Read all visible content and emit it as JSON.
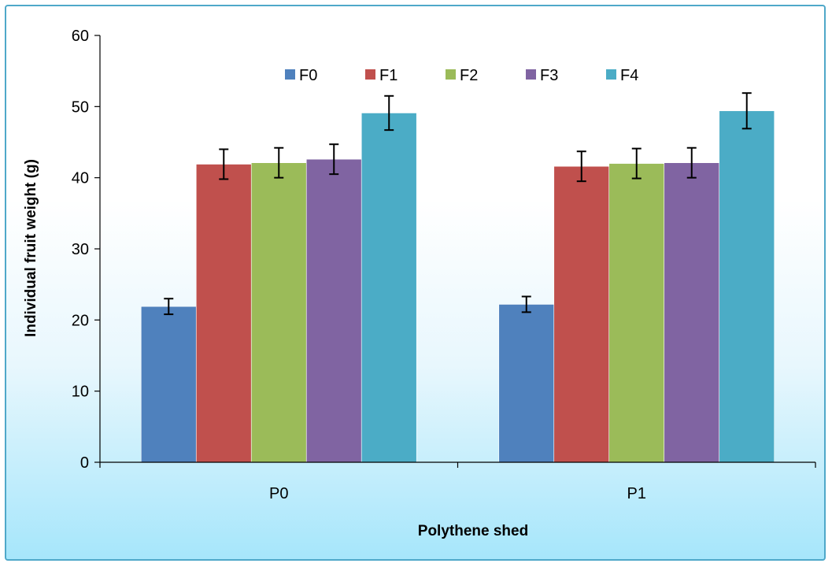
{
  "chart_data": {
    "type": "bar",
    "title": "",
    "xlabel": "Polythene shed",
    "ylabel": "Individual fruit weight (g)",
    "categories": [
      "P0",
      "P1"
    ],
    "ylim": [
      0,
      60
    ],
    "yticks": [
      0,
      10,
      20,
      30,
      40,
      50,
      60
    ],
    "grid": false,
    "legend_position": "top",
    "series": [
      {
        "name": "F0",
        "color": "#4f81bd",
        "values": [
          21.9,
          22.2
        ],
        "errors": [
          1.1,
          1.1
        ]
      },
      {
        "name": "F1",
        "color": "#c0504d",
        "values": [
          41.9,
          41.6
        ],
        "errors": [
          2.1,
          2.1
        ]
      },
      {
        "name": "F2",
        "color": "#9bbb59",
        "values": [
          42.1,
          42.0
        ],
        "errors": [
          2.1,
          2.1
        ]
      },
      {
        "name": "F3",
        "color": "#8064a2",
        "values": [
          42.6,
          42.1
        ],
        "errors": [
          2.1,
          2.1
        ]
      },
      {
        "name": "F4",
        "color": "#4bacc6",
        "values": [
          49.1,
          49.4
        ],
        "errors": [
          2.4,
          2.5
        ]
      }
    ]
  }
}
